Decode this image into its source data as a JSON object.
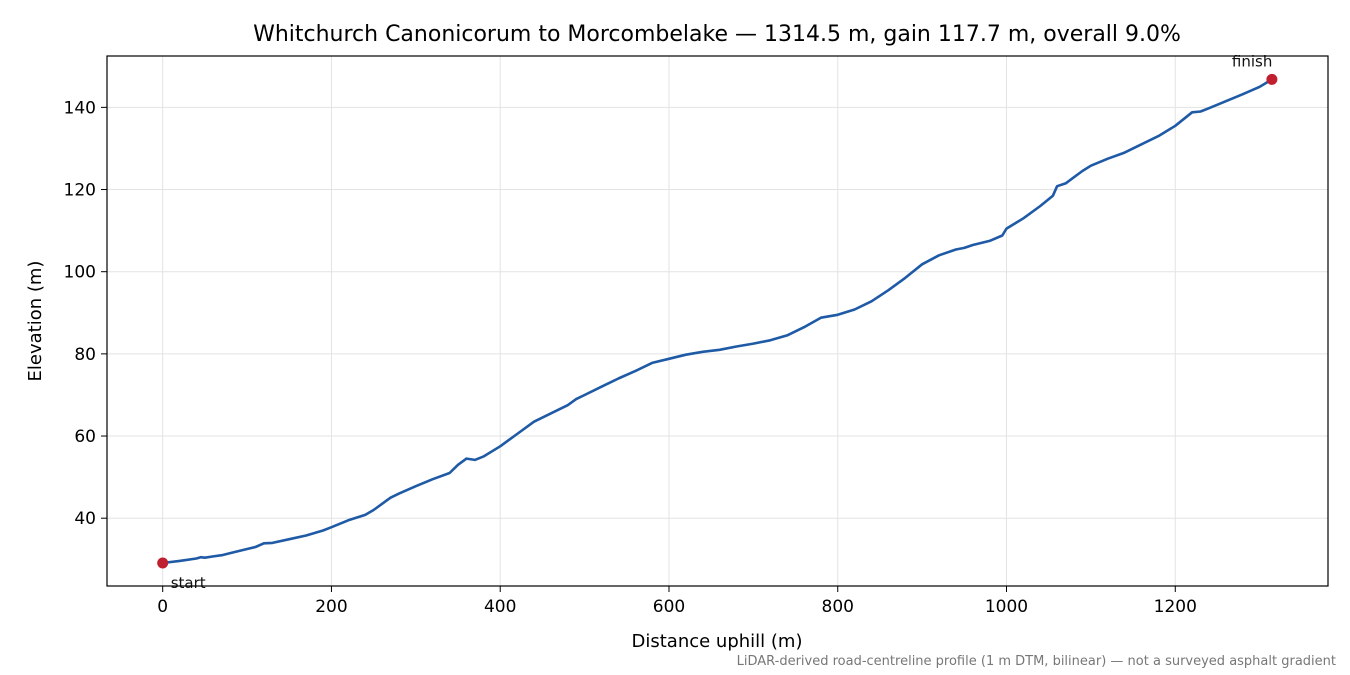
{
  "chart_data": {
    "type": "line",
    "title": "Whitchurch Canonicorum to Morcombelake — 1314.5 m, gain 117.7 m, overall 9.0%",
    "xlabel": "Distance uphill (m)",
    "ylabel": "Elevation (m)",
    "footnote": "LiDAR-derived road-centreline profile (1 m DTM, bilinear) — not a surveyed asphalt gradient",
    "xlim": [
      -66,
      1381
    ],
    "ylim": [
      23.5,
      152.5
    ],
    "x_ticks": [
      0,
      200,
      400,
      600,
      800,
      1000,
      1200
    ],
    "y_ticks": [
      40,
      60,
      80,
      100,
      120,
      140
    ],
    "grid": true,
    "series": [
      {
        "color": "#1f5aa6",
        "x": [
          0,
          20,
          40,
          45,
          50,
          60,
          70,
          80,
          100,
          110,
          120,
          130,
          150,
          170,
          190,
          200,
          220,
          240,
          250,
          260,
          270,
          280,
          300,
          320,
          340,
          350,
          360,
          370,
          380,
          400,
          420,
          440,
          460,
          480,
          490,
          500,
          520,
          540,
          560,
          580,
          600,
          620,
          640,
          660,
          680,
          700,
          720,
          740,
          760,
          780,
          800,
          820,
          840,
          860,
          880,
          900,
          920,
          940,
          950,
          960,
          980,
          995,
          1000,
          1020,
          1040,
          1055,
          1060,
          1070,
          1080,
          1090,
          1100,
          1120,
          1140,
          1160,
          1180,
          1200,
          1220,
          1230,
          1240,
          1260,
          1280,
          1300,
          1314.5
        ],
        "y": [
          29.1,
          29.6,
          30.2,
          30.5,
          30.4,
          30.7,
          31.0,
          31.5,
          32.5,
          33.0,
          33.9,
          34.0,
          34.9,
          35.8,
          37.0,
          37.8,
          39.5,
          40.8,
          42.0,
          43.5,
          45.0,
          46.0,
          47.8,
          49.5,
          51.0,
          53.0,
          54.5,
          54.2,
          55.0,
          57.5,
          60.5,
          63.5,
          65.5,
          67.5,
          69.0,
          70.0,
          72.0,
          74.0,
          75.8,
          77.8,
          78.8,
          79.8,
          80.5,
          81.0,
          81.8,
          82.5,
          83.3,
          84.5,
          86.5,
          88.8,
          89.5,
          90.8,
          92.8,
          95.5,
          98.5,
          101.8,
          104.0,
          105.4,
          105.8,
          106.5,
          107.5,
          108.8,
          110.5,
          113.0,
          116.0,
          118.5,
          120.8,
          121.5,
          123.0,
          124.5,
          125.8,
          127.5,
          129.0,
          131.0,
          133.0,
          135.5,
          138.8,
          139.0,
          139.8,
          141.5,
          143.2,
          145.0,
          146.8
        ]
      }
    ],
    "markers": [
      {
        "label": "start",
        "x": 0,
        "y": 29.1,
        "color": "#c01f2f"
      },
      {
        "label": "finish",
        "x": 1314.5,
        "y": 146.8,
        "color": "#c01f2f"
      }
    ]
  }
}
